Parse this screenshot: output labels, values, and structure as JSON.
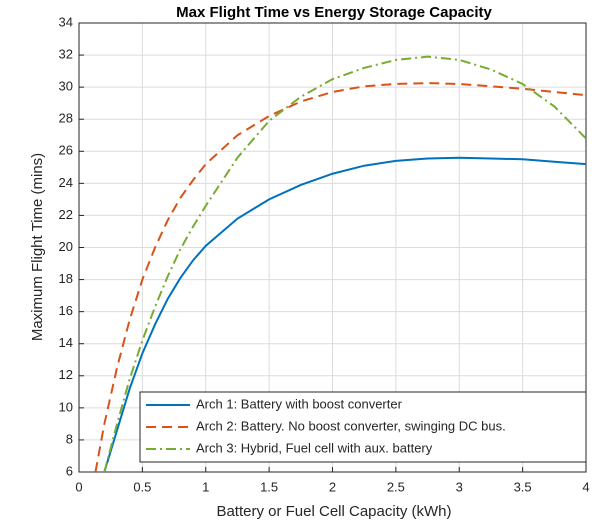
{
  "chart_data": {
    "type": "line",
    "title": "Max Flight Time vs Energy Storage Capacity",
    "x_label": "Battery or Fuel Cell Capacity (kWh)",
    "y_label": "Maximum Flight Time (mins)",
    "xlim": [
      0,
      4
    ],
    "xticks": [
      0,
      0.5,
      1,
      1.5,
      2,
      2.5,
      3,
      3.5,
      4
    ],
    "ylim": [
      6,
      34
    ],
    "yticks": [
      6,
      8,
      10,
      12,
      14,
      16,
      18,
      20,
      22,
      24,
      26,
      28,
      30,
      32,
      34
    ],
    "grid": true,
    "legend_location": "southeast",
    "series": [
      {
        "name": "Arch 1: Battery with boost converter",
        "color": "#0072bd",
        "linestyle": "solid",
        "x": [
          0.2,
          0.3,
          0.4,
          0.5,
          0.6,
          0.7,
          0.8,
          0.9,
          1.0,
          1.25,
          1.5,
          1.75,
          2.0,
          2.25,
          2.5,
          2.75,
          3.0,
          3.25,
          3.5,
          3.75,
          4.0
        ],
        "values": [
          6,
          8.6,
          11.2,
          13.4,
          15.2,
          16.8,
          18.1,
          19.2,
          20.1,
          21.8,
          23.0,
          23.9,
          24.6,
          25.1,
          25.4,
          25.55,
          25.6,
          25.55,
          25.5,
          25.35,
          25.2
        ]
      },
      {
        "name": "Arch 2: Battery. No boost converter, swinging DC bus.",
        "color": "#d95319",
        "linestyle": "dashed",
        "x": [
          0.13,
          0.2,
          0.3,
          0.4,
          0.5,
          0.6,
          0.7,
          0.8,
          0.9,
          1.0,
          1.25,
          1.5,
          1.75,
          2.0,
          2.25,
          2.5,
          2.75,
          3.0,
          3.25,
          3.5,
          3.75,
          4.0
        ],
        "values": [
          6,
          9,
          12.5,
          15.5,
          18,
          20,
          21.7,
          23.1,
          24.2,
          25.2,
          27,
          28.2,
          29.1,
          29.7,
          30.05,
          30.2,
          30.25,
          30.2,
          30.05,
          29.9,
          29.7,
          29.5
        ]
      },
      {
        "name": "Arch 3: Hybrid, Fuel cell with aux. battery",
        "color": "#77ac30",
        "linestyle": "dashdot",
        "x": [
          0.2,
          0.3,
          0.4,
          0.5,
          0.6,
          0.7,
          0.8,
          0.9,
          1.0,
          1.25,
          1.5,
          1.75,
          2.0,
          2.25,
          2.5,
          2.75,
          3.0,
          3.25,
          3.5,
          3.75,
          4.0
        ],
        "values": [
          6,
          9,
          11.8,
          14.2,
          16.3,
          18.2,
          19.9,
          21.3,
          22.6,
          25.6,
          27.9,
          29.4,
          30.5,
          31.2,
          31.7,
          31.9,
          31.7,
          31.1,
          30.2,
          28.8,
          26.8
        ]
      }
    ]
  }
}
